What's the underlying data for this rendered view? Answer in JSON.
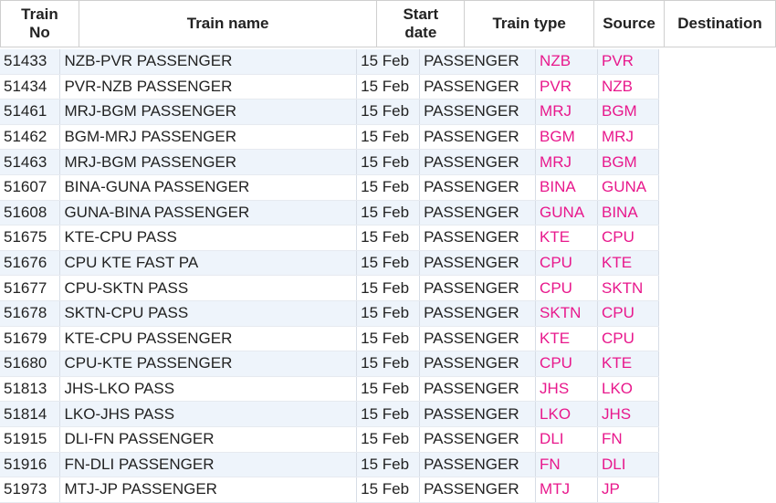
{
  "headers": {
    "train_no": "Train No",
    "train_no_l1": "Train",
    "train_no_l2": "No",
    "train_name": "Train name",
    "start_date_l1": "Start",
    "start_date_l2": "date",
    "train_type": "Train type",
    "source": "Source",
    "destination": "Destination"
  },
  "rows": [
    {
      "no": "51433",
      "name": "NZB-PVR PASSENGER",
      "date": "15 Feb",
      "type": "PASSENGER",
      "source": "NZB",
      "destination": "PVR"
    },
    {
      "no": "51434",
      "name": "PVR-NZB PASSENGER",
      "date": "15 Feb",
      "type": "PASSENGER",
      "source": "PVR",
      "destination": "NZB"
    },
    {
      "no": "51461",
      "name": "MRJ-BGM PASSENGER",
      "date": "15 Feb",
      "type": "PASSENGER",
      "source": "MRJ",
      "destination": "BGM"
    },
    {
      "no": "51462",
      "name": "BGM-MRJ PASSENGER",
      "date": "15 Feb",
      "type": "PASSENGER",
      "source": "BGM",
      "destination": "MRJ"
    },
    {
      "no": "51463",
      "name": "MRJ-BGM PASSENGER",
      "date": "15 Feb",
      "type": "PASSENGER",
      "source": "MRJ",
      "destination": "BGM"
    },
    {
      "no": "51607",
      "name": "BINA-GUNA PASSENGER",
      "date": "15 Feb",
      "type": "PASSENGER",
      "source": "BINA",
      "destination": "GUNA"
    },
    {
      "no": "51608",
      "name": "GUNA-BINA PASSENGER",
      "date": "15 Feb",
      "type": "PASSENGER",
      "source": "GUNA",
      "destination": "BINA"
    },
    {
      "no": "51675",
      "name": "KTE-CPU PASS",
      "date": "15 Feb",
      "type": "PASSENGER",
      "source": "KTE",
      "destination": "CPU"
    },
    {
      "no": "51676",
      "name": "CPU KTE FAST PA",
      "date": "15 Feb",
      "type": "PASSENGER",
      "source": "CPU",
      "destination": "KTE"
    },
    {
      "no": "51677",
      "name": "CPU-SKTN PASS",
      "date": "15 Feb",
      "type": "PASSENGER",
      "source": "CPU",
      "destination": "SKTN"
    },
    {
      "no": "51678",
      "name": "SKTN-CPU PASS",
      "date": "15 Feb",
      "type": "PASSENGER",
      "source": "SKTN",
      "destination": "CPU"
    },
    {
      "no": "51679",
      "name": "KTE-CPU PASSENGER",
      "date": "15 Feb",
      "type": "PASSENGER",
      "source": "KTE",
      "destination": "CPU"
    },
    {
      "no": "51680",
      "name": "CPU-KTE PASSENGER",
      "date": "15 Feb",
      "type": "PASSENGER",
      "source": "CPU",
      "destination": "KTE"
    },
    {
      "no": "51813",
      "name": "JHS-LKO PASS",
      "date": "15 Feb",
      "type": "PASSENGER",
      "source": "JHS",
      "destination": "LKO"
    },
    {
      "no": "51814",
      "name": "LKO-JHS PASS",
      "date": "15 Feb",
      "type": "PASSENGER",
      "source": "LKO",
      "destination": "JHS"
    },
    {
      "no": "51915",
      "name": "DLI-FN PASSENGER",
      "date": "15 Feb",
      "type": "PASSENGER",
      "source": "DLI",
      "destination": "FN"
    },
    {
      "no": "51916",
      "name": "FN-DLI PASSENGER",
      "date": "15 Feb",
      "type": "PASSENGER",
      "source": "FN",
      "destination": "DLI"
    },
    {
      "no": "51973",
      "name": "MTJ-JP PASSENGER",
      "date": "15 Feb",
      "type": "PASSENGER",
      "source": "MTJ",
      "destination": "JP"
    }
  ],
  "colors": {
    "code_text": "#e8188c",
    "row_alt": "#eef4fb"
  }
}
